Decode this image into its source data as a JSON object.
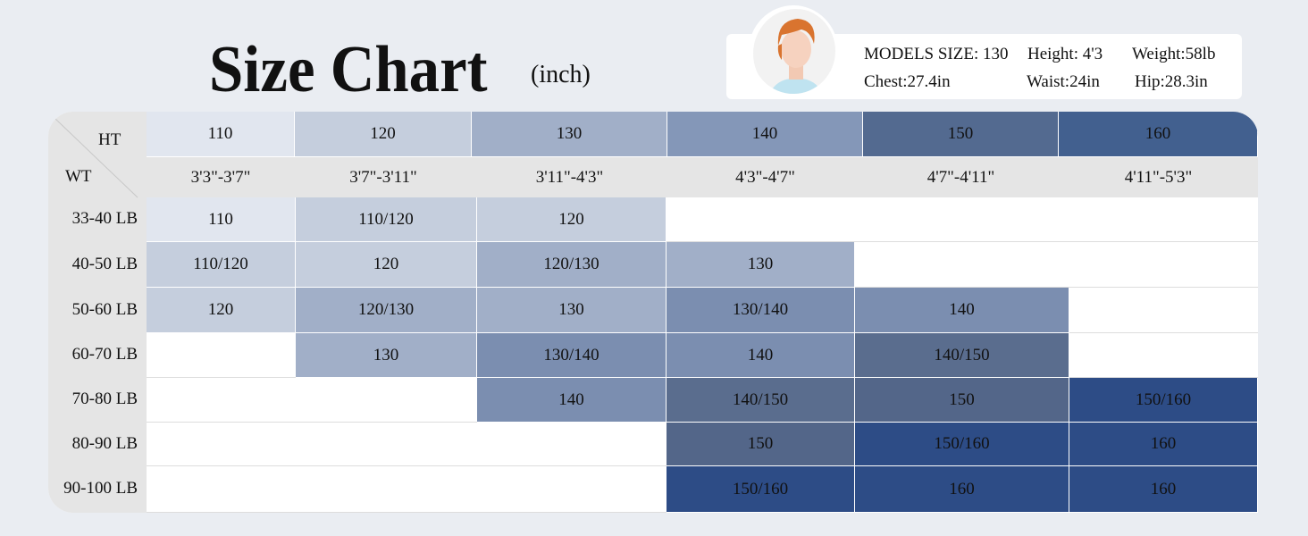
{
  "title": "Size Chart",
  "unit": "(inch)",
  "model": {
    "size": "MODELS  SIZE: 130",
    "height": "Height: 4'3",
    "weight": "Weight:58lb",
    "chest": "Chest:27.4in",
    "waist": "Waist:24in",
    "hip": "Hip:28.3in"
  },
  "corner": {
    "ht": "HT",
    "wt": "WT"
  },
  "header_sizes": [
    "110",
    "120",
    "130",
    "140",
    "150",
    "160"
  ],
  "header_heights": [
    "3'3\"-3'7\"",
    "3'7\"-3'11\"",
    "3'11\"-4'3\"",
    "4'3\"-4'7\"",
    "4'7\"-4'11\"",
    "4'11\"-5'3\""
  ],
  "header_colors": [
    "#e1e6ef",
    "#c5cedd",
    "#a1afc8",
    "#8497b8",
    "#536a90",
    "#42608f"
  ],
  "rows": [
    {
      "label": "33-40 LB",
      "cells": [
        "110",
        "110/120",
        "120",
        "",
        "",
        ""
      ]
    },
    {
      "label": "40-50 LB",
      "cells": [
        "110/120",
        "120",
        "120/130",
        "130",
        "",
        ""
      ]
    },
    {
      "label": "50-60 LB",
      "cells": [
        "120",
        "120/130",
        "130",
        "130/140",
        "140",
        ""
      ]
    },
    {
      "label": "60-70 LB",
      "cells": [
        "",
        "130",
        "130/140",
        "140",
        "140/150",
        ""
      ]
    },
    {
      "label": "70-80 LB",
      "cells": [
        "",
        "",
        "140",
        "140/150",
        "150",
        "150/160"
      ]
    },
    {
      "label": "80-90 LB",
      "cells": [
        "",
        "",
        "",
        "150",
        "150/160",
        "160"
      ]
    },
    {
      "label": "90-100 LB",
      "cells": [
        "",
        "",
        "",
        "150/160",
        "160",
        "160"
      ]
    }
  ],
  "size_colors": {
    "110": "#e1e6ef",
    "110/120": "#c5cedd",
    "120": "#c5cedd",
    "120/130": "#a1afc8",
    "130": "#a1afc8",
    "130/140": "#7b8eb0",
    "140": "#7b8eb0",
    "140/150": "#5a6d8e",
    "150": "#536689",
    "150/160": "#2d4c86",
    "160": "#2d4c86"
  }
}
